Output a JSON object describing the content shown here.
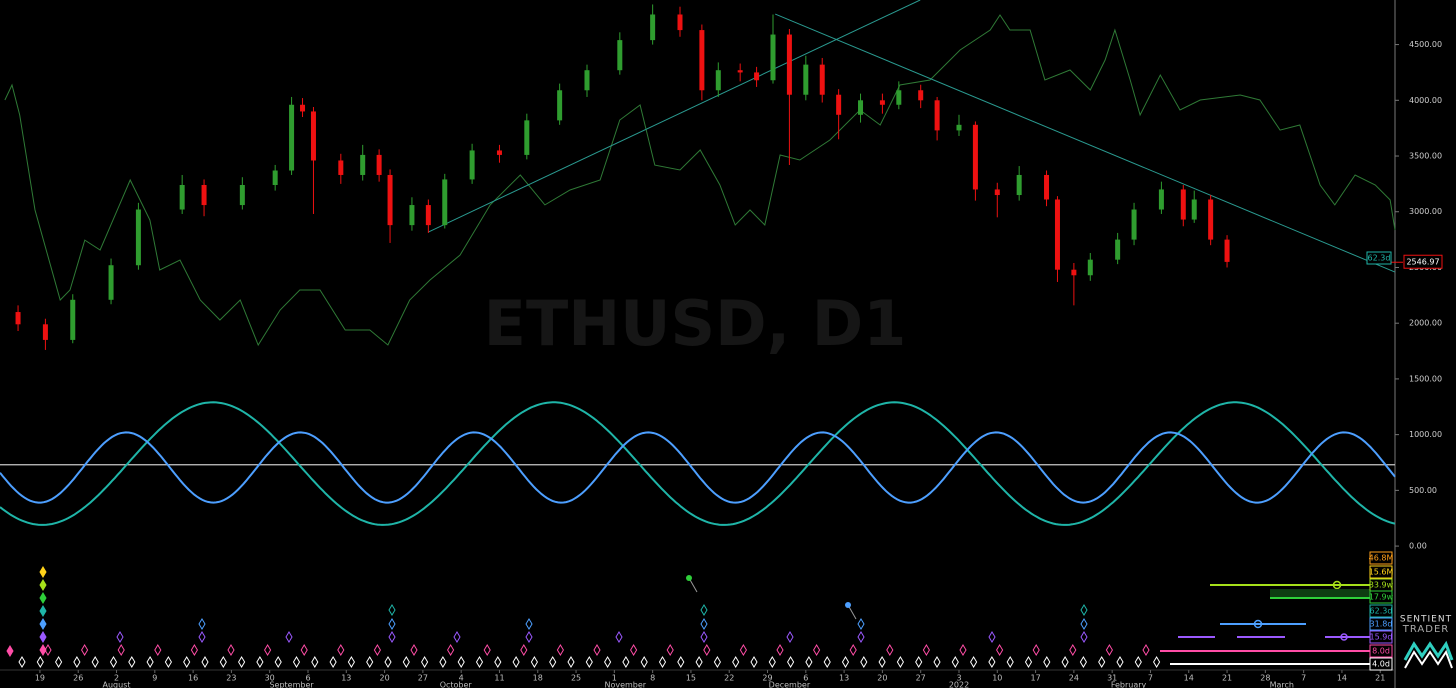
{
  "chart_data": {
    "type": "candlestick",
    "title": "ETHUSD, D1",
    "x": [
      -4,
      1,
      6,
      13,
      18,
      26,
      30,
      37,
      43,
      46,
      48,
      50,
      55,
      59,
      62,
      64,
      68,
      71,
      74,
      79,
      84,
      89,
      95,
      100,
      106,
      112,
      117,
      121,
      124,
      128,
      131,
      134,
      137,
      140,
      143,
      146,
      150,
      154,
      157,
      161,
      164,
      168,
      171,
      175,
      179,
      184,
      186,
      189,
      192,
      197,
      200,
      205,
      209,
      211,
      214,
      217
    ],
    "open": [
      2100,
      1990,
      1850,
      2210,
      2520,
      3020,
      3240,
      3060,
      3240,
      3370,
      3960,
      3900,
      3460,
      3330,
      3510,
      3330,
      2880,
      3060,
      2880,
      3290,
      3550,
      3510,
      3820,
      4090,
      4270,
      4540,
      4770,
      4630,
      4090,
      4270,
      4250,
      4180,
      4590,
      4050,
      4320,
      4050,
      3870,
      4000,
      3960,
      4090,
      4000,
      3730,
      3780,
      3200,
      3150,
      3330,
      3110,
      2480,
      2430,
      2570,
      2750,
      3020,
      3200,
      2930,
      3110,
      2750
    ],
    "high": [
      2160,
      2040,
      2260,
      2580,
      3080,
      3330,
      3290,
      3310,
      3420,
      4030,
      4020,
      3940,
      3520,
      3600,
      3560,
      3380,
      3130,
      3110,
      3340,
      3610,
      3600,
      3880,
      4150,
      4320,
      4610,
      4860,
      4840,
      4680,
      4340,
      4330,
      4300,
      4770,
      4640,
      4400,
      4380,
      4100,
      4060,
      4060,
      4170,
      4140,
      4030,
      3870,
      3810,
      3260,
      3410,
      3370,
      3140,
      2540,
      2630,
      2810,
      3080,
      3270,
      3240,
      3190,
      3150,
      2790
    ],
    "low": [
      1930,
      1760,
      1820,
      2170,
      2480,
      2980,
      2960,
      3020,
      3190,
      3330,
      3850,
      2980,
      3250,
      3280,
      3270,
      2720,
      2830,
      2810,
      2850,
      3250,
      3440,
      3470,
      3780,
      4030,
      4230,
      4500,
      4570,
      4000,
      4030,
      4170,
      4120,
      4150,
      3420,
      4000,
      3980,
      3650,
      3800,
      3880,
      3920,
      3930,
      3640,
      3680,
      3100,
      2950,
      3100,
      3050,
      2370,
      2160,
      2380,
      2530,
      2700,
      2980,
      2870,
      2900,
      2700,
      2500
    ],
    "close": [
      1990,
      1850,
      2210,
      2520,
      3020,
      3240,
      3060,
      3240,
      3370,
      3960,
      3900,
      3460,
      3330,
      3510,
      3330,
      2880,
      3060,
      2880,
      3290,
      3550,
      3510,
      3820,
      4090,
      4270,
      4540,
      4770,
      4630,
      4090,
      4270,
      4250,
      4180,
      4590,
      4050,
      4320,
      4050,
      3870,
      4000,
      3960,
      4090,
      4000,
      3730,
      3780,
      3200,
      3150,
      3330,
      3110,
      2480,
      2430,
      2570,
      2750,
      3020,
      3200,
      2930,
      3110,
      2750,
      2550
    ],
    "up_color": "#2f9d2f",
    "down_color": "#ee1111",
    "last_price": 2546.97,
    "xlim": [
      -7.3,
      247.7
    ],
    "ylim": [
      -80,
      4900
    ],
    "yticks": [
      {
        "value": 4500,
        "label": "4500.00"
      },
      {
        "value": 4000,
        "label": "4000.00"
      },
      {
        "value": 3500,
        "label": "3500.00"
      },
      {
        "value": 3000,
        "label": "3000.00"
      },
      {
        "value": 2500,
        "label": "2500.00"
      },
      {
        "value": 2000,
        "label": "2000.00"
      },
      {
        "value": 1500,
        "label": "1500.00"
      },
      {
        "value": 1000,
        "label": "1000.00"
      },
      {
        "value": 500,
        "label": "500.00"
      },
      {
        "value": 0,
        "label": "0.00"
      }
    ],
    "xticks": [
      {
        "value": 0,
        "label": "19"
      },
      {
        "value": 7,
        "label": "26"
      },
      {
        "value": 14,
        "label": "2"
      },
      {
        "value": 21,
        "label": "9"
      },
      {
        "value": 28,
        "label": "16"
      },
      {
        "value": 35,
        "label": "23"
      },
      {
        "value": 42,
        "label": "30"
      },
      {
        "value": 49,
        "label": "6"
      },
      {
        "value": 56,
        "label": "13"
      },
      {
        "value": 63,
        "label": "20"
      },
      {
        "value": 70,
        "label": "27"
      },
      {
        "value": 77,
        "label": "4"
      },
      {
        "value": 84,
        "label": "11"
      },
      {
        "value": 91,
        "label": "18"
      },
      {
        "value": 98,
        "label": "25"
      },
      {
        "value": 105,
        "label": "1"
      },
      {
        "value": 112,
        "label": "8"
      },
      {
        "value": 119,
        "label": "15"
      },
      {
        "value": 126,
        "label": "22"
      },
      {
        "value": 133,
        "label": "29"
      },
      {
        "value": 140,
        "label": "6"
      },
      {
        "value": 147,
        "label": "13"
      },
      {
        "value": 154,
        "label": "20"
      },
      {
        "value": 161,
        "label": "27"
      },
      {
        "value": 168,
        "label": "3"
      },
      {
        "value": 175,
        "label": "10"
      },
      {
        "value": 182,
        "label": "17"
      },
      {
        "value": 189,
        "label": "24"
      },
      {
        "value": 196,
        "label": "31"
      },
      {
        "value": 203,
        "label": "7"
      },
      {
        "value": 210,
        "label": "14"
      },
      {
        "value": 217,
        "label": "21"
      },
      {
        "value": 224,
        "label": "28"
      },
      {
        "value": 231,
        "label": "7"
      },
      {
        "value": 238,
        "label": "14"
      },
      {
        "value": 245,
        "label": "21"
      }
    ],
    "month_ticks": [
      {
        "value": 14,
        "label": "August"
      },
      {
        "value": 46,
        "label": "September"
      },
      {
        "value": 76,
        "label": "October"
      },
      {
        "value": 107,
        "label": "November"
      },
      {
        "value": 137,
        "label": "December"
      },
      {
        "value": 168,
        "label": "2022"
      },
      {
        "value": 199,
        "label": "February"
      },
      {
        "value": 227,
        "label": "March"
      }
    ],
    "overlay": {
      "color": "#2f7a36",
      "x": [
        -6.4,
        -5.1,
        -3.7,
        -0.9,
        3.7,
        5.5,
        8.2,
        11.0,
        16.5,
        20.1,
        21.9,
        25.6,
        29.3,
        32.9,
        36.6,
        39.9,
        43.9,
        47.5,
        51.2,
        55.8,
        60.3,
        63.6,
        67.6,
        71.3,
        76.8,
        82.3,
        87.8,
        92.3,
        96.9,
        102.4,
        106.0,
        109.7,
        112.4,
        117.0,
        120.7,
        124.3,
        127.1,
        129.8,
        132.5,
        135.3,
        138.9,
        144.4,
        149.9,
        153.6,
        157.2,
        162.7,
        168.2,
        173.7,
        175.5,
        177.3,
        181.0,
        183.7,
        188.3,
        192.0,
        194.7,
        196.5,
        199.3,
        201.1,
        204.8,
        208.4,
        212.1,
        219.4,
        223.0,
        226.7,
        230.3,
        234.0,
        236.7,
        240.4,
        244.1,
        246.8,
        247.7
      ],
      "values": [
        4003,
        4137,
        3868,
        3016,
        2208,
        2298,
        2746,
        2657,
        3285,
        2926,
        2477,
        2567,
        2208,
        2029,
        2208,
        1804,
        2118,
        2298,
        2298,
        1939,
        1939,
        1804,
        2208,
        2388,
        2612,
        3061,
        3330,
        3061,
        3195,
        3285,
        3823,
        3958,
        3419,
        3375,
        3554,
        3240,
        2881,
        3016,
        2881,
        3509,
        3464,
        3644,
        3913,
        3778,
        4137,
        4182,
        4451,
        4631,
        4765,
        4631,
        4631,
        4182,
        4272,
        4092,
        4362,
        4631,
        4182,
        3868,
        4227,
        3913,
        4003,
        4048,
        4003,
        3733,
        3778,
        3240,
        3061,
        3330,
        3240,
        3106,
        2836
      ]
    },
    "trendlines": [
      {
        "color": "#2a9a90",
        "x": [
          71,
          160.9
        ],
        "values": [
          2818,
          4900
        ]
      },
      {
        "color": "#2a9a90",
        "x": [
          134.4,
          247.7
        ],
        "values": [
          4774,
          2459
        ]
      }
    ],
    "midline": {
      "value": 730,
      "color": "#c8c8c8"
    },
    "cycles": [
      {
        "name": "46.8M",
        "color": "#ff9f1a"
      },
      {
        "name": "15.6M",
        "color": "#ffd21a"
      },
      {
        "name": "33.9w",
        "color": "#a6e01a"
      },
      {
        "name": "17.9w",
        "color": "#2fcf3a"
      },
      {
        "name": "62.3d",
        "color": "#1fb5a8",
        "period": 62.3,
        "peak": 218.5,
        "center": 740,
        "amplitude": 550
      },
      {
        "name": "31.8d",
        "color": "#4d9fff",
        "period": 31.8,
        "peak": 206.6,
        "center": 705,
        "amplitude": 315
      },
      {
        "name": "15.9d",
        "color": "#9b59ff"
      },
      {
        "name": "8.0d",
        "color": "#ff4da6"
      },
      {
        "name": "4.0d",
        "color": "#ffffff"
      }
    ]
  },
  "logo": {
    "line1": "SENTIENT",
    "line2": "TRADER"
  }
}
